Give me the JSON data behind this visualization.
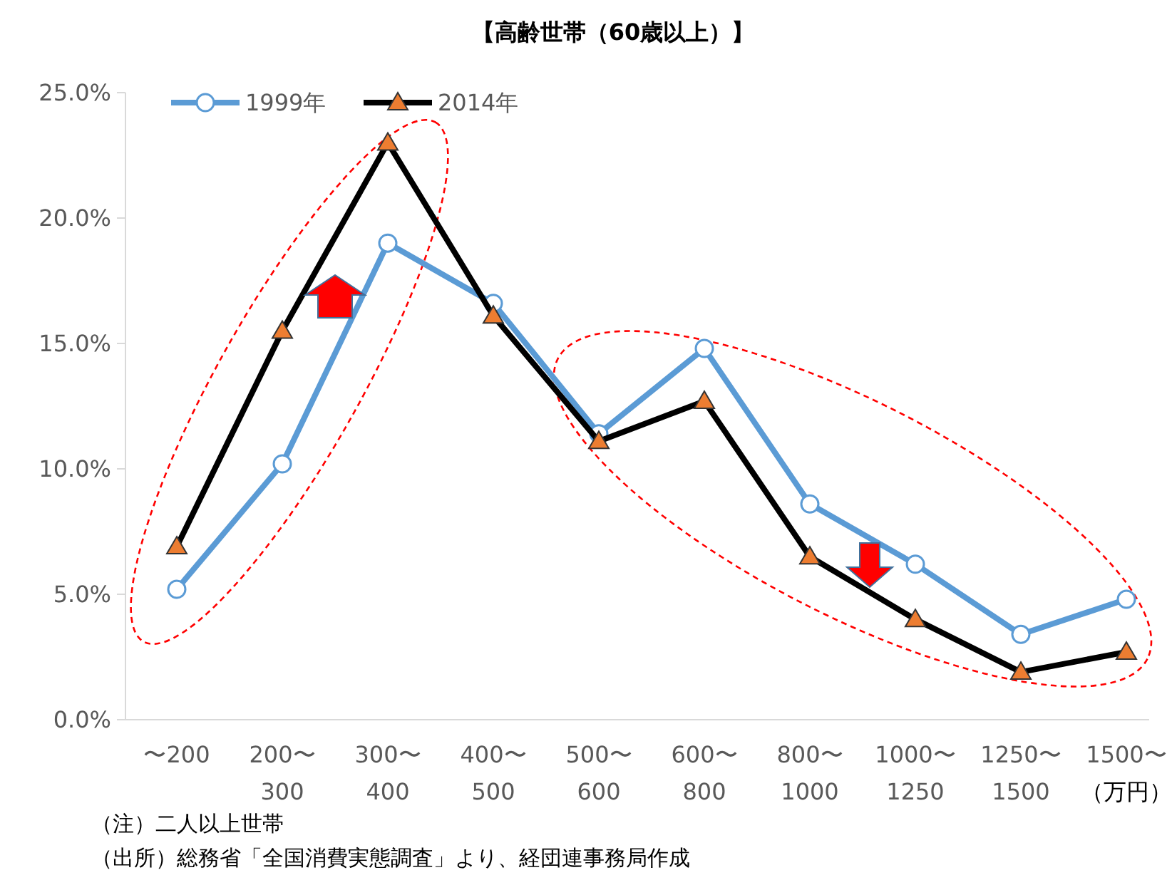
{
  "chart_data": {
    "type": "line",
    "title": "【高齢世帯（60歳以上）】",
    "categories": [
      "〜200",
      "200〜\n300",
      "300〜\n400",
      "400〜\n500",
      "500〜\n600",
      "600〜\n800",
      "800〜\n1000",
      "1000〜\n1250",
      "1250〜\n1500",
      "1500〜"
    ],
    "xlabel": "（万円）",
    "series": [
      {
        "name": "1999年",
        "color": "#5b9bd5",
        "marker": "circle",
        "values": [
          5.2,
          10.2,
          19.0,
          16.6,
          11.4,
          14.8,
          8.6,
          6.2,
          3.4,
          4.8
        ]
      },
      {
        "name": "2014年",
        "color": "#000000",
        "marker": "triangle",
        "values": [
          6.9,
          15.5,
          23.0,
          16.1,
          11.1,
          12.7,
          6.5,
          4.0,
          1.9,
          2.7
        ]
      }
    ],
    "ylim": [
      0,
      25
    ],
    "yticks": [
      {
        "value": 0,
        "label": "0.0%"
      },
      {
        "value": 5,
        "label": "5.0%"
      },
      {
        "value": 10,
        "label": "10.0%"
      },
      {
        "value": 15,
        "label": "15.0%"
      },
      {
        "value": 20,
        "label": "20.0%"
      },
      {
        "value": 25,
        "label": "25.0%"
      }
    ],
    "grid": false,
    "legend": "top left",
    "annotations": [
      "（注）二人以上世帯",
      "（出所）総務省「全国消費実態調査」より、経団連事務局作成"
    ]
  }
}
